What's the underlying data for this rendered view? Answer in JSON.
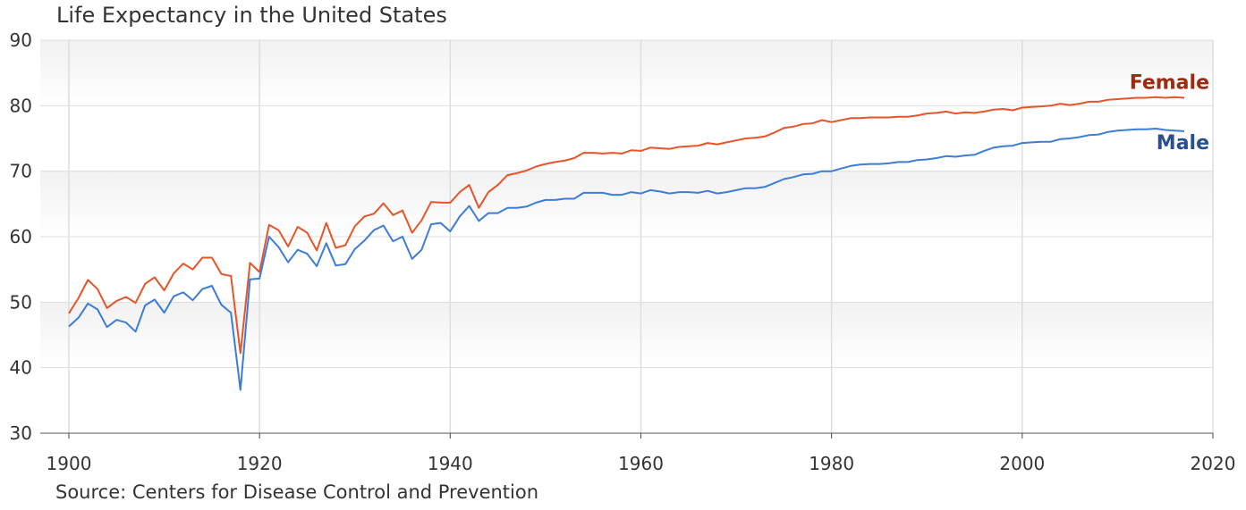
{
  "chart_data": {
    "type": "line",
    "title": "Life Expectancy in the United States",
    "source": "Source: Centers for Disease Control and Prevention",
    "xlabel": "",
    "ylabel": "",
    "xlim": [
      1897,
      2020
    ],
    "ylim": [
      30,
      90
    ],
    "x_ticks": [
      1900,
      1920,
      1940,
      1960,
      1980,
      2000,
      2020
    ],
    "y_ticks": [
      30,
      40,
      50,
      60,
      70,
      80,
      90
    ],
    "grid": true,
    "legend": "inline labels at right end of each line",
    "x": [
      1900,
      1901,
      1902,
      1903,
      1904,
      1905,
      1906,
      1907,
      1908,
      1909,
      1910,
      1911,
      1912,
      1913,
      1914,
      1915,
      1916,
      1917,
      1918,
      1919,
      1920,
      1921,
      1922,
      1923,
      1924,
      1925,
      1926,
      1927,
      1928,
      1929,
      1930,
      1931,
      1932,
      1933,
      1934,
      1935,
      1936,
      1937,
      1938,
      1939,
      1940,
      1941,
      1942,
      1943,
      1944,
      1945,
      1946,
      1947,
      1948,
      1949,
      1950,
      1951,
      1952,
      1953,
      1954,
      1955,
      1956,
      1957,
      1958,
      1959,
      1960,
      1961,
      1962,
      1963,
      1964,
      1965,
      1966,
      1967,
      1968,
      1969,
      1970,
      1971,
      1972,
      1973,
      1974,
      1975,
      1976,
      1977,
      1978,
      1979,
      1980,
      1981,
      1982,
      1983,
      1984,
      1985,
      1986,
      1987,
      1988,
      1989,
      1990,
      1991,
      1992,
      1993,
      1994,
      1995,
      1996,
      1997,
      1998,
      1999,
      2000,
      2001,
      2002,
      2003,
      2004,
      2005,
      2006,
      2007,
      2008,
      2009,
      2010,
      2011,
      2012,
      2013,
      2014,
      2015,
      2016,
      2017
    ],
    "series": [
      {
        "name": "Female",
        "color": "#e8542a",
        "label_color": "#9e2a12",
        "values": [
          48.3,
          50.6,
          53.4,
          52.0,
          49.1,
          50.2,
          50.8,
          49.9,
          52.8,
          53.8,
          51.8,
          54.4,
          55.9,
          55.0,
          56.8,
          56.8,
          54.3,
          54.0,
          42.2,
          56.0,
          54.6,
          61.8,
          61.0,
          58.5,
          61.5,
          60.6,
          57.9,
          62.1,
          58.3,
          58.7,
          61.6,
          63.1,
          63.5,
          65.1,
          63.3,
          64.0,
          60.6,
          62.5,
          65.3,
          65.2,
          65.2,
          66.8,
          67.9,
          64.4,
          66.8,
          67.9,
          69.4,
          69.7,
          70.1,
          70.7,
          71.1,
          71.4,
          71.6,
          72.0,
          72.8,
          72.8,
          72.7,
          72.8,
          72.7,
          73.2,
          73.1,
          73.6,
          73.5,
          73.4,
          73.7,
          73.8,
          73.9,
          74.3,
          74.1,
          74.4,
          74.7,
          75.0,
          75.1,
          75.3,
          75.9,
          76.6,
          76.8,
          77.2,
          77.3,
          77.8,
          77.5,
          77.8,
          78.1,
          78.1,
          78.2,
          78.2,
          78.2,
          78.3,
          78.3,
          78.5,
          78.8,
          78.9,
          79.1,
          78.8,
          79.0,
          78.9,
          79.1,
          79.4,
          79.5,
          79.3,
          79.7,
          79.8,
          79.9,
          80.0,
          80.3,
          80.1,
          80.3,
          80.6,
          80.6,
          80.9,
          81.0,
          81.1,
          81.2,
          81.2,
          81.3,
          81.2,
          81.3,
          81.2
        ]
      },
      {
        "name": "Male",
        "color": "#3d7dd4",
        "label_color": "#2a4f8f",
        "values": [
          46.3,
          47.6,
          49.8,
          48.9,
          46.2,
          47.3,
          46.9,
          45.5,
          49.5,
          50.4,
          48.4,
          50.9,
          51.5,
          50.3,
          52.0,
          52.5,
          49.6,
          48.4,
          36.6,
          53.5,
          53.6,
          60.0,
          58.4,
          56.1,
          58.0,
          57.4,
          55.5,
          59.0,
          55.6,
          55.8,
          58.1,
          59.4,
          61.0,
          61.7,
          59.3,
          60.0,
          56.6,
          58.0,
          61.9,
          62.1,
          60.8,
          63.1,
          64.7,
          62.4,
          63.6,
          63.6,
          64.4,
          64.4,
          64.6,
          65.2,
          65.6,
          65.6,
          65.8,
          65.8,
          66.7,
          66.7,
          66.7,
          66.4,
          66.4,
          66.8,
          66.6,
          67.1,
          66.9,
          66.6,
          66.8,
          66.8,
          66.7,
          67.0,
          66.6,
          66.8,
          67.1,
          67.4,
          67.4,
          67.6,
          68.2,
          68.8,
          69.1,
          69.5,
          69.6,
          70.0,
          70.0,
          70.4,
          70.8,
          71.0,
          71.1,
          71.1,
          71.2,
          71.4,
          71.4,
          71.7,
          71.8,
          72.0,
          72.3,
          72.2,
          72.4,
          72.5,
          73.1,
          73.6,
          73.8,
          73.9,
          74.3,
          74.4,
          74.5,
          74.5,
          74.9,
          75.0,
          75.2,
          75.5,
          75.6,
          76.0,
          76.2,
          76.3,
          76.4,
          76.4,
          76.5,
          76.3,
          76.2,
          76.1
        ]
      }
    ]
  }
}
